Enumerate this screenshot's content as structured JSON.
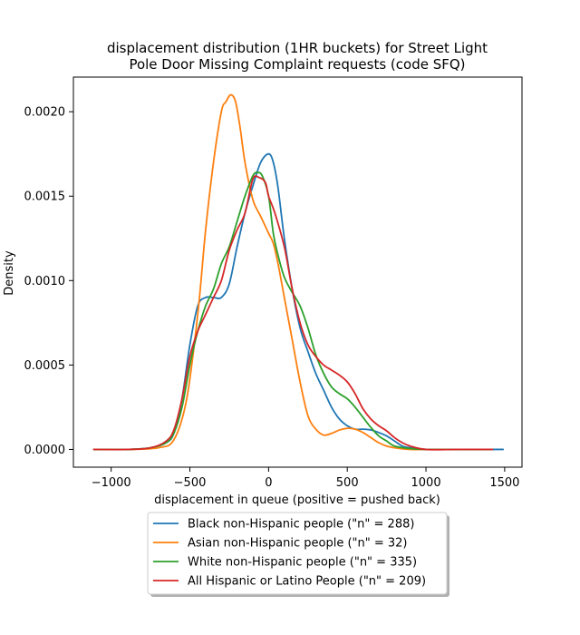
{
  "chart_data": {
    "type": "line",
    "title_lines": [
      "displacement distribution (1HR buckets) for Street Light",
      "Pole Door Missing Complaint requests (code SFQ)"
    ],
    "xlabel": "displacement in queue (positive = pushed back)",
    "ylabel": "Density",
    "xlim": [
      -1240,
      1610
    ],
    "ylim": [
      -0.000105,
      0.002205
    ],
    "xticks": [
      -1000,
      -500,
      0,
      500,
      1000,
      1500
    ],
    "xtick_labels": [
      "−1000",
      "−500",
      "0",
      "500",
      "1000",
      "1500"
    ],
    "yticks": [
      0,
      0.0005,
      0.001,
      0.0015,
      0.002
    ],
    "ytick_labels": [
      "0.0000",
      "0.0005",
      "0.0010",
      "0.0015",
      "0.0020"
    ],
    "grid": false,
    "legend_placement": "below plot, centered",
    "series": [
      {
        "name": "Black non-Hispanic people (\"n\" = 288)",
        "color": "#1f77b4",
        "points": [
          [
            -1110,
            0
          ],
          [
            -900,
            0
          ],
          [
            -750,
            1e-05
          ],
          [
            -650,
            4e-05
          ],
          [
            -600,
            0.0001
          ],
          [
            -550,
            0.0003
          ],
          [
            -500,
            0.00062
          ],
          [
            -450,
            0.00085
          ],
          [
            -400,
            0.0009
          ],
          [
            -350,
            0.0009
          ],
          [
            -300,
            0.0009
          ],
          [
            -250,
            0.00098
          ],
          [
            -200,
            0.0012
          ],
          [
            -150,
            0.0014
          ],
          [
            -100,
            0.00156
          ],
          [
            -50,
            0.0017
          ],
          [
            0,
            0.00175
          ],
          [
            30,
            0.0017
          ],
          [
            60,
            0.00155
          ],
          [
            100,
            0.00125
          ],
          [
            150,
            0.00095
          ],
          [
            200,
            0.00072
          ],
          [
            250,
            0.00058
          ],
          [
            300,
            0.00045
          ],
          [
            350,
            0.00035
          ],
          [
            400,
            0.00025
          ],
          [
            450,
            0.00018
          ],
          [
            500,
            0.00014
          ],
          [
            550,
            0.00012
          ],
          [
            600,
            0.00012
          ],
          [
            650,
            0.000115
          ],
          [
            700,
            0.0001
          ],
          [
            750,
            8e-05
          ],
          [
            800,
            5e-05
          ],
          [
            850,
            2e-05
          ],
          [
            900,
            1e-05
          ],
          [
            1000,
            0
          ],
          [
            1200,
            0
          ],
          [
            1400,
            0
          ],
          [
            1490,
            0
          ]
        ]
      },
      {
        "name": "Asian non-Hispanic people (\"n\" = 32)",
        "color": "#ff7f0e",
        "points": [
          [
            -1110,
            0
          ],
          [
            -900,
            0
          ],
          [
            -700,
            1e-05
          ],
          [
            -600,
            6e-05
          ],
          [
            -520,
            0.0003
          ],
          [
            -450,
            0.0008
          ],
          [
            -400,
            0.0013
          ],
          [
            -350,
            0.0017
          ],
          [
            -300,
            0.002
          ],
          [
            -270,
            0.00206
          ],
          [
            -240,
            0.0021
          ],
          [
            -210,
            0.00206
          ],
          [
            -180,
            0.0019
          ],
          [
            -150,
            0.0017
          ],
          [
            -100,
            0.00148
          ],
          [
            -50,
            0.00138
          ],
          [
            0,
            0.00128
          ],
          [
            30,
            0.00122
          ],
          [
            60,
            0.0011
          ],
          [
            100,
            0.0009
          ],
          [
            150,
            0.00065
          ],
          [
            200,
            0.0004
          ],
          [
            250,
            0.0002
          ],
          [
            300,
            0.00012
          ],
          [
            350,
            8.5e-05
          ],
          [
            400,
            9.5e-05
          ],
          [
            450,
            0.000115
          ],
          [
            500,
            0.000125
          ],
          [
            550,
            0.00012
          ],
          [
            600,
            0.0001
          ],
          [
            650,
            7e-05
          ],
          [
            700,
            4e-05
          ],
          [
            750,
            2e-05
          ],
          [
            800,
            1e-05
          ],
          [
            900,
            0
          ],
          [
            1100,
            0
          ],
          [
            1300,
            0
          ],
          [
            1400,
            0
          ]
        ]
      },
      {
        "name": "White non-Hispanic people (\"n\" = 335)",
        "color": "#2ca02c",
        "points": [
          [
            -1110,
            0
          ],
          [
            -900,
            0
          ],
          [
            -750,
            1e-05
          ],
          [
            -650,
            4e-05
          ],
          [
            -600,
            0.0001
          ],
          [
            -550,
            0.00025
          ],
          [
            -500,
            0.0005
          ],
          [
            -450,
            0.0007
          ],
          [
            -400,
            0.00085
          ],
          [
            -350,
            0.00095
          ],
          [
            -300,
            0.0011
          ],
          [
            -250,
            0.0012
          ],
          [
            -200,
            0.00135
          ],
          [
            -150,
            0.0015
          ],
          [
            -100,
            0.00162
          ],
          [
            -70,
            0.00164
          ],
          [
            -40,
            0.00162
          ],
          [
            0,
            0.0015
          ],
          [
            30,
            0.00128
          ],
          [
            60,
            0.00115
          ],
          [
            100,
            0.00102
          ],
          [
            150,
            0.00093
          ],
          [
            200,
            0.00085
          ],
          [
            250,
            0.00072
          ],
          [
            300,
            0.00056
          ],
          [
            350,
            0.00045
          ],
          [
            400,
            0.00037
          ],
          [
            450,
            0.00033
          ],
          [
            500,
            0.0003
          ],
          [
            550,
            0.00025
          ],
          [
            600,
            0.00019
          ],
          [
            650,
            0.00013
          ],
          [
            700,
            8e-05
          ],
          [
            750,
            5e-05
          ],
          [
            800,
            2e-05
          ],
          [
            900,
            5e-06
          ],
          [
            1000,
            0
          ],
          [
            1200,
            0
          ],
          [
            1400,
            0
          ],
          [
            1420,
            0
          ]
        ]
      },
      {
        "name": "All Hispanic or Latino People (\"n\" = 209)",
        "color": "#d62728",
        "points": [
          [
            -1110,
            0
          ],
          [
            -900,
            0
          ],
          [
            -750,
            1e-05
          ],
          [
            -650,
            5e-05
          ],
          [
            -600,
            0.00012
          ],
          [
            -550,
            0.0003
          ],
          [
            -500,
            0.00055
          ],
          [
            -450,
            0.0007
          ],
          [
            -400,
            0.0008
          ],
          [
            -350,
            0.0009
          ],
          [
            -300,
            0.001
          ],
          [
            -250,
            0.00118
          ],
          [
            -200,
            0.0013
          ],
          [
            -150,
            0.0014
          ],
          [
            -100,
            0.0016
          ],
          [
            -60,
            0.00161
          ],
          [
            -20,
            0.00158
          ],
          [
            0,
            0.0015
          ],
          [
            40,
            0.0014
          ],
          [
            100,
            0.0012
          ],
          [
            150,
            0.00095
          ],
          [
            200,
            0.00075
          ],
          [
            250,
            0.00062
          ],
          [
            300,
            0.00055
          ],
          [
            350,
            0.0005
          ],
          [
            400,
            0.00047
          ],
          [
            450,
            0.00044
          ],
          [
            500,
            0.0004
          ],
          [
            550,
            0.00033
          ],
          [
            600,
            0.00024
          ],
          [
            650,
            0.00018
          ],
          [
            700,
            0.00014
          ],
          [
            750,
            0.00011
          ],
          [
            800,
            7e-05
          ],
          [
            850,
            4e-05
          ],
          [
            900,
            2e-05
          ],
          [
            1000,
            0
          ],
          [
            1200,
            0
          ],
          [
            1400,
            0
          ],
          [
            1420,
            0
          ]
        ]
      }
    ]
  }
}
